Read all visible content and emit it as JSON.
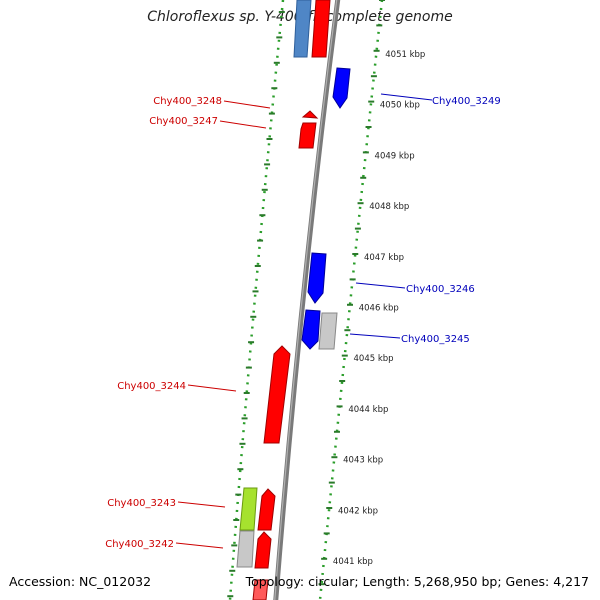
{
  "title": "Chloroflexus sp. Y-400-fl, complete genome",
  "footer": {
    "accession": "Accession: NC_012032",
    "stats": "Topology: circular; Length: 5,268,950 bp; Genes: 4,217"
  },
  "colors": {
    "forward_cds": "#ff0000",
    "reverse_cds": "#0000ff",
    "other_gene": "#c8c8c8",
    "highlight_gene": "#a6e22e",
    "steel_gene": "#4f86c6",
    "backbone": "#808080",
    "ruler_dots": "#2a9d2a",
    "forward_label": "#cc0000",
    "reverse_label": "#0000bb"
  },
  "ruler_ticks": [
    "4051 kbp",
    "4050 kbp",
    "4049 kbp",
    "4048 kbp",
    "4047 kbp",
    "4046 kbp",
    "4045 kbp",
    "4044 kbp",
    "4043 kbp",
    "4042 kbp",
    "4041 kbp"
  ],
  "genes": [
    {
      "name": "Chy400_3249",
      "strand": "reverse"
    },
    {
      "name": "Chy400_3248",
      "strand": "forward"
    },
    {
      "name": "Chy400_3247",
      "strand": "forward"
    },
    {
      "name": "Chy400_3246",
      "strand": "reverse"
    },
    {
      "name": "Chy400_3245",
      "strand": "reverse"
    },
    {
      "name": "Chy400_3244",
      "strand": "forward"
    },
    {
      "name": "Chy400_3243",
      "strand": "forward"
    },
    {
      "name": "Chy400_3242",
      "strand": "forward"
    }
  ]
}
